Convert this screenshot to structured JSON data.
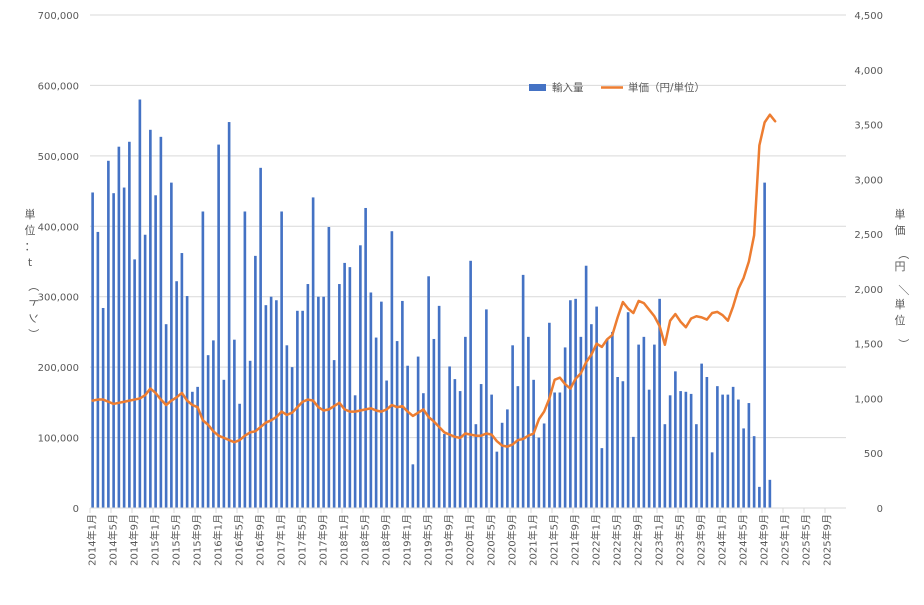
{
  "chart_data": {
    "type": "bar+line",
    "x": [
      "2014年1月",
      "2014年2月",
      "2014年3月",
      "2014年4月",
      "2014年5月",
      "2014年6月",
      "2014年7月",
      "2014年8月",
      "2014年9月",
      "2014年10月",
      "2014年11月",
      "2014年12月",
      "2015年1月",
      "2015年2月",
      "2015年3月",
      "2015年4月",
      "2015年5月",
      "2015年6月",
      "2015年7月",
      "2015年8月",
      "2015年9月",
      "2015年10月",
      "2015年11月",
      "2015年12月",
      "2016年1月",
      "2016年2月",
      "2016年3月",
      "2016年4月",
      "2016年5月",
      "2016年6月",
      "2016年7月",
      "2016年8月",
      "2016年9月",
      "2016年10月",
      "2016年11月",
      "2016年12月",
      "2017年1月",
      "2017年2月",
      "2017年3月",
      "2017年4月",
      "2017年5月",
      "2017年6月",
      "2017年7月",
      "2017年8月",
      "2017年9月",
      "2017年10月",
      "2017年11月",
      "2017年12月",
      "2018年1月",
      "2018年2月",
      "2018年3月",
      "2018年4月",
      "2018年5月",
      "2018年6月",
      "2018年7月",
      "2018年8月",
      "2018年9月",
      "2018年10月",
      "2018年11月",
      "2018年12月",
      "2019年1月",
      "2019年2月",
      "2019年3月",
      "2019年4月",
      "2019年5月",
      "2019年6月",
      "2019年7月",
      "2019年8月",
      "2019年9月",
      "2019年10月",
      "2019年11月",
      "2019年12月",
      "2020年1月",
      "2020年2月",
      "2020年3月",
      "2020年4月",
      "2020年5月",
      "2020年6月",
      "2020年7月",
      "2020年8月",
      "2020年9月",
      "2020年10月",
      "2020年11月",
      "2020年12月",
      "2021年1月",
      "2021年2月",
      "2021年3月",
      "2021年4月",
      "2021年5月",
      "2021年6月",
      "2021年7月",
      "2021年8月",
      "2021年9月",
      "2021年10月",
      "2021年11月",
      "2021年12月",
      "2022年1月",
      "2022年2月",
      "2022年3月",
      "2022年4月",
      "2022年5月",
      "2022年6月",
      "2022年7月",
      "2022年8月",
      "2022年9月",
      "2022年10月",
      "2022年11月",
      "2022年12月",
      "2023年1月",
      "2023年2月",
      "2023年3月",
      "2023年4月",
      "2023年5月",
      "2023年6月",
      "2023年7月",
      "2023年8月",
      "2023年9月",
      "2023年10月",
      "2023年11月",
      "2023年12月",
      "2024年1月",
      "2024年2月",
      "2024年3月",
      "2024年4月",
      "2024年5月",
      "2024年6月",
      "2024年7月",
      "2024年8月",
      "2024年9月",
      "2024年10月",
      "2024年11月",
      "2024年12月",
      "2025年1月",
      "2025年2月",
      "2025年3月",
      "2025年4月",
      "2025年5月",
      "2025年6月",
      "2025年7月",
      "2025年8月",
      "2025年9月",
      "2025年10月",
      "2025年11月",
      "2025年12月"
    ],
    "x_tick_labels": [
      "2014年1月",
      "2014年5月",
      "2014年9月",
      "2015年1月",
      "2015年5月",
      "2015年9月",
      "2016年1月",
      "2016年5月",
      "2016年9月",
      "2017年1月",
      "2017年5月",
      "2017年9月",
      "2018年1月",
      "2018年5月",
      "2018年9月",
      "2019年1月",
      "2019年5月",
      "2019年9月",
      "2020年1月",
      "2020年5月",
      "2020年9月",
      "2021年1月",
      "2021年5月",
      "2021年9月",
      "2022年1月",
      "2022年5月",
      "2022年9月",
      "2023年1月",
      "2023年5月",
      "2023年9月",
      "2024年1月",
      "2024年5月",
      "2024年9月",
      "2025年1月",
      "2025年5月",
      "2025年9月"
    ],
    "series": [
      {
        "name": "輸入量",
        "type": "bar",
        "axis": "left",
        "color": "#4472C4",
        "values": [
          448000,
          392000,
          284000,
          493000,
          447000,
          513000,
          455000,
          520000,
          353000,
          580000,
          388000,
          537000,
          444000,
          527000,
          261000,
          462000,
          322000,
          362000,
          301000,
          165000,
          172000,
          421000,
          217000,
          238000,
          516000,
          182000,
          548000,
          239000,
          148000,
          421000,
          209000,
          358000,
          483000,
          288000,
          300000,
          295000,
          421000,
          231000,
          200000,
          280000,
          280000,
          318000,
          441000,
          300000,
          300000,
          399000,
          210000,
          318000,
          348000,
          342000,
          160000,
          373000,
          426000,
          306000,
          242000,
          293000,
          181000,
          393000,
          237000,
          294000,
          202000,
          62000,
          215000,
          163000,
          329000,
          240000,
          287000,
          105000,
          201000,
          183000,
          166000,
          243000,
          351000,
          119000,
          176000,
          282000,
          161000,
          80000,
          121000,
          140000,
          231000,
          173000,
          331000,
          243000,
          182000,
          100000,
          120000,
          263000,
          164000,
          164000,
          228000,
          295000,
          297000,
          243000,
          344000,
          261000,
          286000,
          85000,
          240000,
          250000,
          186000,
          180000,
          278000,
          101000,
          232000,
          243000,
          168000,
          232000,
          297000,
          119000,
          160000,
          194000,
          166000,
          165000,
          162000,
          119000,
          205000,
          186000,
          79000,
          173000,
          161000,
          161000,
          172000,
          154000,
          113000,
          149000,
          102000,
          30000,
          462000,
          40000,
          null,
          null,
          null,
          null,
          null,
          null,
          null,
          null,
          null,
          null,
          null,
          null,
          null,
          null
        ]
      },
      {
        "name": "単価（円/単位）",
        "type": "line",
        "axis": "right",
        "color": "#ED7D31",
        "values": [
          980,
          990,
          990,
          970,
          950,
          960,
          970,
          980,
          990,
          1000,
          1030,
          1090,
          1050,
          990,
          940,
          980,
          1010,
          1050,
          980,
          940,
          920,
          800,
          760,
          700,
          660,
          640,
          620,
          600,
          620,
          660,
          690,
          700,
          740,
          780,
          800,
          830,
          880,
          850,
          870,
          920,
          970,
          990,
          980,
          920,
          890,
          900,
          930,
          960,
          900,
          880,
          880,
          890,
          900,
          910,
          890,
          880,
          900,
          940,
          920,
          930,
          880,
          840,
          870,
          900,
          830,
          790,
          740,
          690,
          670,
          650,
          640,
          680,
          670,
          660,
          660,
          680,
          670,
          610,
          570,
          560,
          580,
          620,
          630,
          660,
          680,
          810,
          880,
          1000,
          1170,
          1190,
          1130,
          1090,
          1180,
          1230,
          1330,
          1400,
          1500,
          1470,
          1540,
          1580,
          1740,
          1880,
          1820,
          1780,
          1890,
          1870,
          1810,
          1750,
          1660,
          1490,
          1710,
          1770,
          1700,
          1650,
          1730,
          1750,
          1740,
          1720,
          1780,
          1790,
          1760,
          1710,
          1840,
          2000,
          2100,
          2250,
          2490,
          3310,
          3520,
          3590,
          3530,
          null,
          null,
          null,
          null,
          null,
          null,
          null,
          null,
          null,
          null,
          null,
          null,
          null
        ]
      }
    ],
    "y_left": {
      "label": "単位：t（トン）",
      "min": 0,
      "max": 700000,
      "step": 100000,
      "tick_labels": [
        "0",
        "100,000",
        "200,000",
        "300,000",
        "400,000",
        "500,000",
        "600,000",
        "700,000"
      ]
    },
    "y_right": {
      "label": "単価（円／単位）",
      "min": 0,
      "max": 4500,
      "step": 500,
      "tick_labels": [
        "0",
        "500",
        "1,000",
        "1,500",
        "2,000",
        "2,500",
        "3,000",
        "3,500",
        "4,000",
        "4,500"
      ]
    },
    "grid": true,
    "legend_position": "top-center"
  }
}
